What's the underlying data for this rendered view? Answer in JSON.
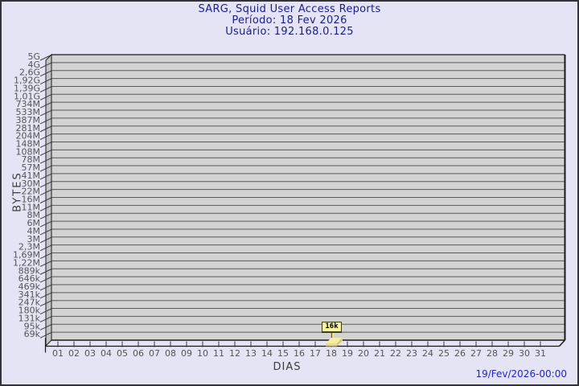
{
  "header": {
    "title": "SARG, Squid User Access Reports",
    "period": "Período: 18 Fev 2026",
    "user": "Usuário: 192.168.0.125"
  },
  "footer": {
    "timestamp": "19/Fev/2026-00:00"
  },
  "chart_data": {
    "type": "bar",
    "title": "SARG, Squid User Access Reports",
    "subtitle_period": "Período: 18 Fev 2026",
    "subtitle_user": "Usuário: 192.168.0.125",
    "xlabel": "DIAS",
    "ylabel": "BYTES",
    "x_tick_labels": [
      "01",
      "02",
      "03",
      "04",
      "05",
      "06",
      "07",
      "08",
      "09",
      "10",
      "11",
      "12",
      "13",
      "14",
      "15",
      "16",
      "17",
      "18",
      "19",
      "20",
      "21",
      "22",
      "23",
      "24",
      "25",
      "26",
      "27",
      "28",
      "29",
      "30",
      "31"
    ],
    "y_tick_labels": [
      "5G",
      "4G",
      "2,6G",
      "1,92G",
      "1,39G",
      "1,01G",
      "734M",
      "533M",
      "387M",
      "281M",
      "204M",
      "148M",
      "108M",
      "78M",
      "57M",
      "41M",
      "30M",
      "22M",
      "16M",
      "11M",
      "8M",
      "6M",
      "4M",
      "3M",
      "2,3M",
      "1,69M",
      "1,22M",
      "889k",
      "646k",
      "469k",
      "341k",
      "247k",
      "180k",
      "131k",
      "95k",
      "69k"
    ],
    "y_scale": "logarithmic",
    "grid": true,
    "points": [
      {
        "day": 18,
        "label": "16k",
        "bytes": 16000
      }
    ],
    "colors": {
      "page_bg": "#e4e4f4",
      "plot_bg": "#d3d3d3",
      "wall": "#c3c3c7",
      "grid": "#5a5a5a",
      "edge": "#1a1a1a",
      "title_text": "#1c1c8f",
      "tick_text": "#555555",
      "timestamp_text": "#2424c8",
      "bar_front": "#e8d88c",
      "bar_top": "#f6eca8",
      "bar_side": "#d6c67e",
      "bar_label_bg": "#f8f2a2"
    }
  }
}
